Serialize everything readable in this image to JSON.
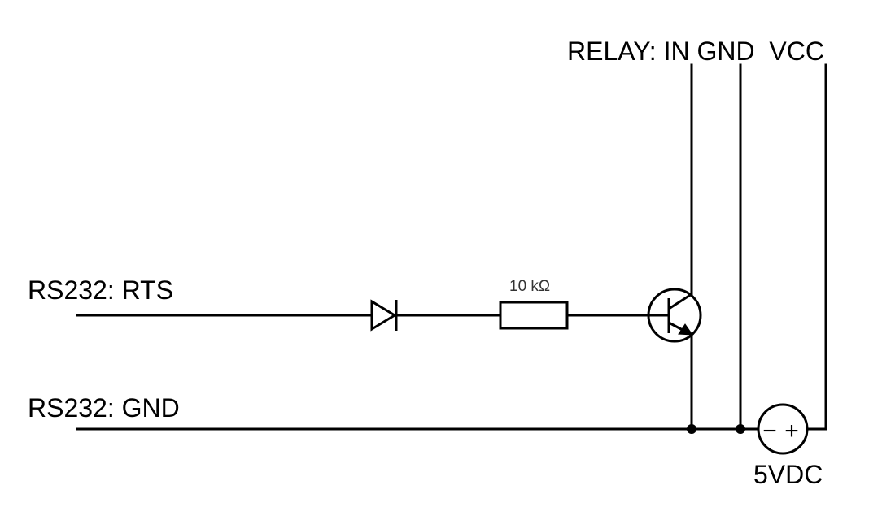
{
  "labels": {
    "relay": "RELAY: IN GND  VCC",
    "rts": "RS232: RTS",
    "gnd": "RS232: GND",
    "resistor": "10 kΩ",
    "supply": "5VDC",
    "supply_minus": "−",
    "supply_plus": "+"
  }
}
